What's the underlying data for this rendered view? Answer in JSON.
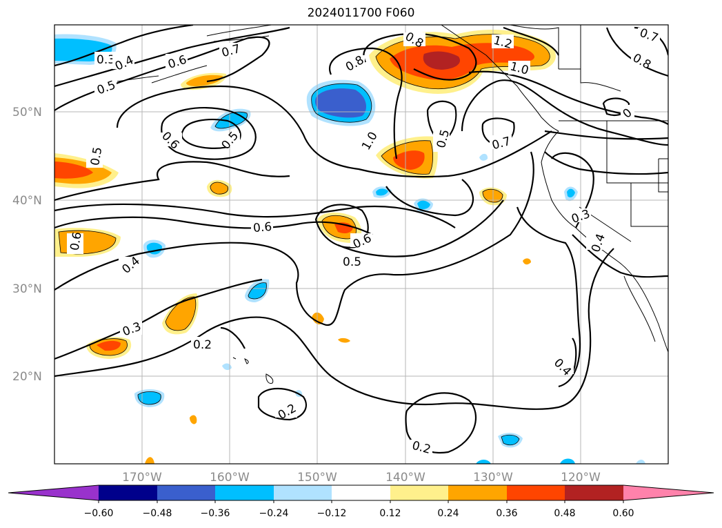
{
  "title": "2024011700 F060",
  "map": {
    "lat_labels": [
      "50°N",
      "40°N",
      "30°N",
      "20°N"
    ],
    "lon_labels": [
      "170°W",
      "160°W",
      "150°W",
      "140°W",
      "130°W",
      "120°W"
    ],
    "contour_labels": [
      {
        "id": "c1",
        "text": "0.3"
      },
      {
        "id": "c2",
        "text": "0.4"
      },
      {
        "id": "c3",
        "text": "0.5"
      },
      {
        "id": "c4",
        "text": "0.6"
      },
      {
        "id": "c5",
        "text": "0.7"
      },
      {
        "id": "c6",
        "text": "0.8"
      },
      {
        "id": "c7",
        "text": "0.6"
      },
      {
        "id": "c8",
        "text": "0.5"
      },
      {
        "id": "c9",
        "text": "1.0"
      },
      {
        "id": "c10",
        "text": "0.8"
      },
      {
        "id": "c11",
        "text": "1.2"
      },
      {
        "id": "c12",
        "text": "1.0"
      },
      {
        "id": "c13",
        "text": "0.7"
      },
      {
        "id": "c14",
        "text": "0.8"
      },
      {
        "id": "c15",
        "text": "0.5"
      },
      {
        "id": "c16",
        "text": "0.7"
      },
      {
        "id": "c17",
        "text": "0.5"
      },
      {
        "id": "c18",
        "text": "0.6"
      },
      {
        "id": "c19",
        "text": "0.6"
      },
      {
        "id": "c20",
        "text": "0.4"
      },
      {
        "id": "c21",
        "text": "0.6"
      },
      {
        "id": "c22",
        "text": "0.5"
      },
      {
        "id": "c23",
        "text": "0.3"
      },
      {
        "id": "c24",
        "text": "0.2"
      },
      {
        "id": "c25",
        "text": "0.3"
      },
      {
        "id": "c26",
        "text": "0.4"
      },
      {
        "id": "c27",
        "text": "0.4"
      },
      {
        "id": "c28",
        "text": "0.2"
      },
      {
        "id": "c29",
        "text": "0.2"
      },
      {
        "id": "c30",
        "text": "0"
      }
    ]
  },
  "colorbar": {
    "ticks": [
      "−0.60",
      "−0.48",
      "−0.36",
      "−0.24",
      "−0.12",
      "0.12",
      "0.24",
      "0.36",
      "0.48",
      "0.60"
    ],
    "colors": {
      "under": "#9932cc",
      "b1": "#00008b",
      "b2": "#3a5fcd",
      "b3": "#00bfff",
      "b4": "#b0e2ff",
      "mid": "#ffffff",
      "r1": "#fff08c",
      "r2": "#ffa500",
      "r3": "#ff4500",
      "r4": "#b22222",
      "over": "#ff82ab"
    }
  }
}
